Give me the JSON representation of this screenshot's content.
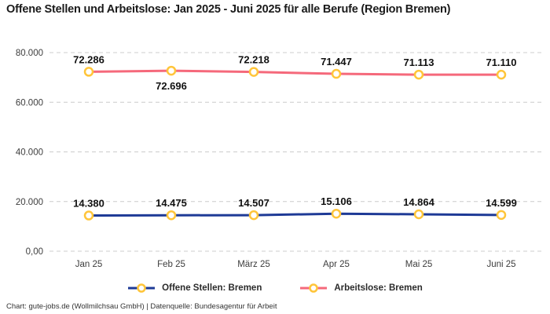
{
  "title": "Offene Stellen und Arbeitslose: Jan 2025 - Juni 2025 für alle Berufe (Region Bremen)",
  "footer": "Chart: gute-jobs.de (Wollmilchsau GmbH) | Datenquelle: Bundesagentur für Arbeit",
  "colors": {
    "offene_stellen": "#1E3A96",
    "arbeitslose": "#F5697B",
    "marker_ring": "#FFC53A",
    "marker_fill": "#FFFFFF",
    "grid": "#CCCCCC",
    "tick_text": "#3D3D3D",
    "label_text": "#111111",
    "background": "#FFFFFF"
  },
  "chart_data": {
    "type": "line",
    "x": [
      "Jan 25",
      "Feb 25",
      "März 25",
      "Apr 25",
      "Mai 25",
      "Juni 25"
    ],
    "y_ticks": [
      "0,00",
      "20.000",
      "40.000",
      "60.000",
      "80.000"
    ],
    "y_tick_values": [
      0,
      20000,
      40000,
      60000,
      80000
    ],
    "ylim": [
      0,
      85000
    ],
    "grid": "horizontal-dashed",
    "legend_position": "bottom",
    "title": "Offene Stellen und Arbeitslose: Jan 2025 - Juni 2025 für alle Berufe (Region Bremen)",
    "series": [
      {
        "name": "Offene Stellen: Bremen",
        "color": "#1E3A96",
        "values": [
          14380,
          14475,
          14507,
          15106,
          14864,
          14599
        ],
        "labels": [
          "14.380",
          "14.475",
          "14.507",
          "15.106",
          "14.864",
          "14.599"
        ],
        "label_below": [
          false,
          false,
          false,
          false,
          false,
          false
        ]
      },
      {
        "name": "Arbeitslose: Bremen",
        "color": "#F5697B",
        "values": [
          72286,
          72696,
          72218,
          71447,
          71113,
          71110
        ],
        "labels": [
          "72.286",
          "72.696",
          "72.218",
          "71.447",
          "71.113",
          "71.110"
        ],
        "label_below": [
          false,
          true,
          false,
          false,
          false,
          false
        ]
      }
    ]
  }
}
